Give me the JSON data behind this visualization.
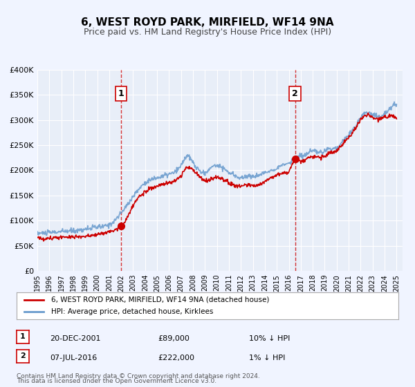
{
  "title": "6, WEST ROYD PARK, MIRFIELD, WF14 9NA",
  "subtitle": "Price paid vs. HM Land Registry's House Price Index (HPI)",
  "bg_color": "#f0f4ff",
  "plot_bg_color": "#e8eef8",
  "grid_color": "#ffffff",
  "ylim": [
    0,
    400000
  ],
  "yticks": [
    0,
    50000,
    100000,
    150000,
    200000,
    250000,
    300000,
    350000,
    400000
  ],
  "ytick_labels": [
    "£0",
    "£50K",
    "£100K",
    "£150K",
    "£200K",
    "£250K",
    "£300K",
    "£350K",
    "£400K"
  ],
  "xlim_start": 1995.0,
  "xlim_end": 2025.5,
  "xtick_years": [
    1995,
    1996,
    1997,
    1998,
    1999,
    2000,
    2001,
    2002,
    2003,
    2004,
    2005,
    2006,
    2007,
    2008,
    2009,
    2010,
    2011,
    2012,
    2013,
    2014,
    2015,
    2016,
    2017,
    2018,
    2019,
    2020,
    2021,
    2022,
    2023,
    2024,
    2025
  ],
  "red_line_color": "#cc0000",
  "blue_line_color": "#6699cc",
  "sale1_x": 2001.97,
  "sale1_y": 89000,
  "sale2_x": 2016.52,
  "sale2_y": 222000,
  "marker_color": "#cc0000",
  "vline_color": "#cc0000",
  "label1_text": "1",
  "label2_text": "2",
  "legend_label_red": "6, WEST ROYD PARK, MIRFIELD, WF14 9NA (detached house)",
  "legend_label_blue": "HPI: Average price, detached house, Kirklees",
  "annotation1_num": "1",
  "annotation1_date": "20-DEC-2001",
  "annotation1_price": "£89,000",
  "annotation1_hpi": "10% ↓ HPI",
  "annotation2_num": "2",
  "annotation2_date": "07-JUL-2016",
  "annotation2_price": "£222,000",
  "annotation2_hpi": "1% ↓ HPI",
  "footer1": "Contains HM Land Registry data © Crown copyright and database right 2024.",
  "footer2": "This data is licensed under the Open Government Licence v3.0."
}
